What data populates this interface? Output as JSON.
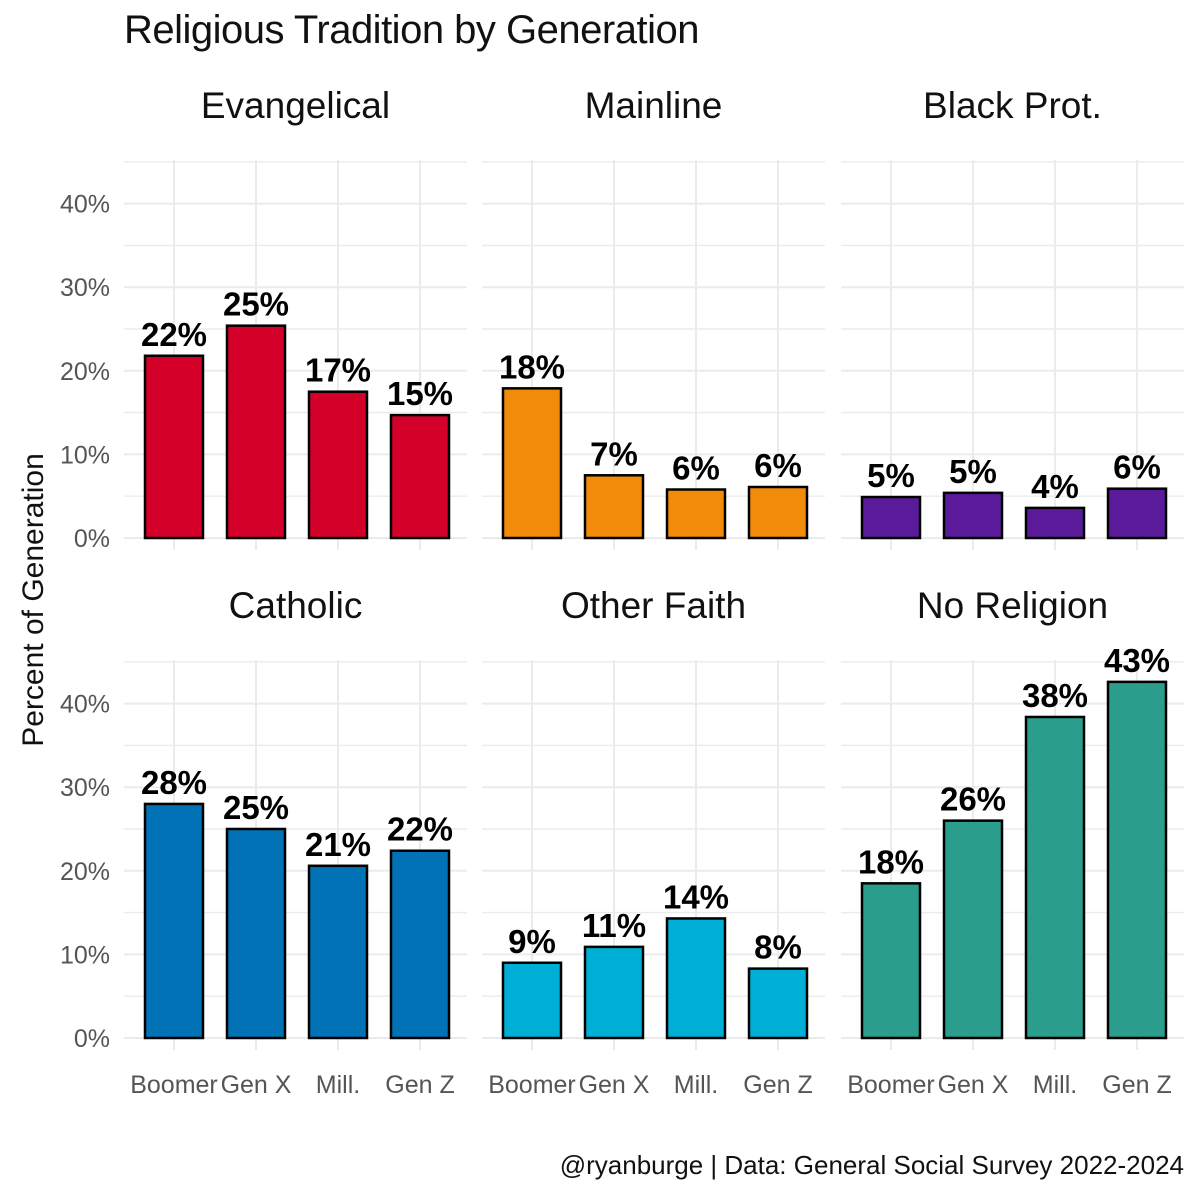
{
  "title": "Religious Tradition by Generation",
  "caption": "@ryanburge | Data: General Social Survey 2022-2024",
  "ylabel": "Percent of Generation",
  "chart_data": {
    "type": "bar",
    "title": "Religious Tradition by Generation",
    "xlabel": "",
    "ylabel": "Percent of Generation",
    "ylim": [
      0,
      45
    ],
    "y_ticks": [
      "0%",
      "10%",
      "20%",
      "30%",
      "40%"
    ],
    "categories": [
      "Boomer",
      "Gen X",
      "Mill.",
      "Gen Z"
    ],
    "grid": true,
    "facets": [
      {
        "name": "Evangelical",
        "color": "#D5002A",
        "values": [
          21.8,
          25.4,
          17.5,
          14.7
        ],
        "labels": [
          "22%",
          "25%",
          "17%",
          "15%"
        ]
      },
      {
        "name": "Mainline",
        "color": "#F28B0A",
        "values": [
          17.9,
          7.5,
          5.8,
          6.1
        ],
        "labels": [
          "18%",
          "7%",
          "6%",
          "6%"
        ]
      },
      {
        "name": "Black Prot.",
        "color": "#5B1A9A",
        "values": [
          4.9,
          5.4,
          3.6,
          5.9
        ],
        "labels": [
          "5%",
          "5%",
          "4%",
          "6%"
        ]
      },
      {
        "name": "Catholic",
        "color": "#0072B5",
        "values": [
          28.0,
          25.0,
          20.6,
          22.4
        ],
        "labels": [
          "28%",
          "25%",
          "21%",
          "22%"
        ]
      },
      {
        "name": "Other Faith",
        "color": "#00AFD6",
        "values": [
          9.0,
          10.9,
          14.3,
          8.3
        ],
        "labels": [
          "9%",
          "11%",
          "14%",
          "8%"
        ]
      },
      {
        "name": "No Religion",
        "color": "#2A9D8C",
        "values": [
          18.5,
          26.0,
          38.4,
          42.6
        ],
        "labels": [
          "18%",
          "26%",
          "38%",
          "43%"
        ]
      }
    ]
  }
}
